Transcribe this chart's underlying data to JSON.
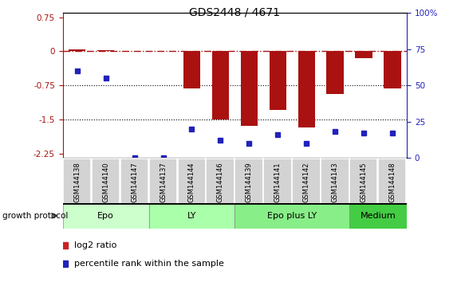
{
  "title": "GDS2448 / 4671",
  "samples": [
    "GSM144138",
    "GSM144140",
    "GSM144147",
    "GSM144137",
    "GSM144144",
    "GSM144146",
    "GSM144139",
    "GSM144141",
    "GSM144142",
    "GSM144143",
    "GSM144145",
    "GSM144148"
  ],
  "log2_ratio": [
    0.05,
    0.02,
    0.0,
    0.0,
    -0.82,
    -1.5,
    -1.65,
    -1.3,
    -1.68,
    -0.95,
    -0.15,
    -0.82
  ],
  "percentile_rank": [
    60,
    55,
    0,
    0,
    20,
    12,
    10,
    16,
    10,
    18,
    17,
    17
  ],
  "groups": [
    {
      "name": "Epo",
      "start": 0,
      "end": 3,
      "color": "#ccffcc"
    },
    {
      "name": "LY",
      "start": 3,
      "end": 6,
      "color": "#aaffaa"
    },
    {
      "name": "Epo plus LY",
      "start": 6,
      "end": 10,
      "color": "#88ee88"
    },
    {
      "name": "Medium",
      "start": 10,
      "end": 12,
      "color": "#44cc44"
    }
  ],
  "ylim_left": [
    -2.35,
    0.85
  ],
  "ylim_right": [
    0,
    100
  ],
  "left_ticks": [
    0.75,
    0,
    -0.75,
    -1.5,
    -2.25
  ],
  "right_ticks": [
    100,
    75,
    50,
    25,
    0
  ],
  "hline_y": 0,
  "dotted_lines": [
    -0.75,
    -1.5
  ],
  "bar_color": "#aa1111",
  "dot_color": "#2222bb",
  "bar_color_legend": "#cc2222",
  "dot_color_legend": "#2222bb",
  "title_fontsize": 10,
  "tick_fontsize": 7.5,
  "label_fontsize": 6,
  "group_fontsize": 8,
  "legend_fontsize": 8
}
